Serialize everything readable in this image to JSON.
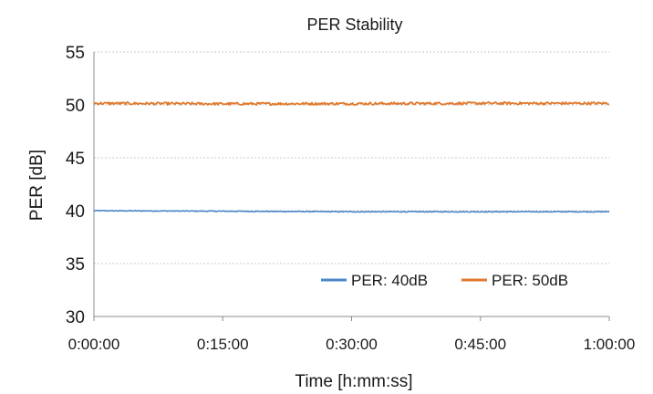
{
  "chart_data": {
    "type": "line",
    "title": "PER Stability",
    "xlabel": "Time [h:mm:ss]",
    "ylabel": "PER [dB]",
    "ylim": [
      30,
      55
    ],
    "yticks": [
      "30",
      "35",
      "40",
      "45",
      "50",
      "55"
    ],
    "xlim": [
      "0:00:00",
      "1:00:00"
    ],
    "xticks": [
      "0:00:00",
      "0:15:00",
      "0:30:00",
      "0:45:00",
      "1:00:00"
    ],
    "grid": true,
    "legend_position": "bottom-right",
    "x": [
      "0:00:00",
      "0:15:00",
      "0:30:00",
      "0:45:00",
      "1:00:00"
    ],
    "series": [
      {
        "name": "PER: 40dB",
        "color": "#4a86c8",
        "values": [
          40.0,
          39.95,
          39.9,
          39.9,
          39.9
        ]
      },
      {
        "name": "PER: 50dB",
        "color": "#e07a2e",
        "values": [
          50.15,
          50.1,
          50.12,
          50.15,
          50.15
        ]
      }
    ]
  }
}
